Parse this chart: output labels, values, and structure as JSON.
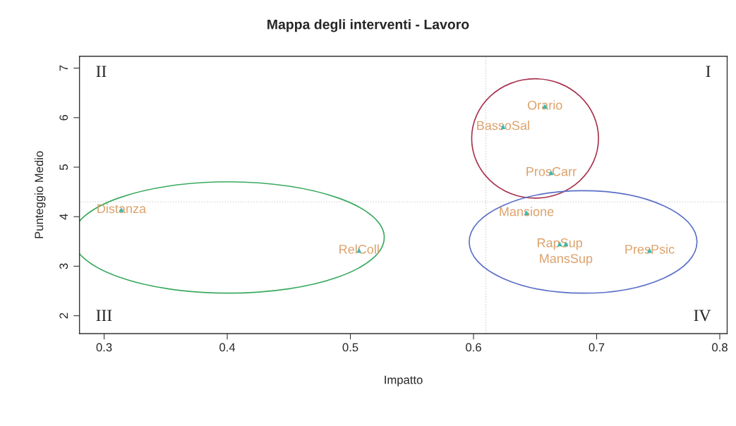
{
  "chart_data": {
    "type": "scatter",
    "title": "Mappa degli interventi - Lavoro",
    "xlabel": "Impatto",
    "ylabel": "Punteggio Medio",
    "xlim": [
      0.28,
      0.806
    ],
    "ylim": [
      1.64,
      7.24
    ],
    "xticks": [
      0.3,
      0.4,
      0.5,
      0.6,
      0.7,
      0.8
    ],
    "yticks": [
      2,
      3,
      4,
      5,
      6,
      7
    ],
    "marker": "triangle",
    "grid": false,
    "legend": false,
    "series": [
      {
        "name": "Orario",
        "color": "#3cb8b0",
        "x": [
          0.658
        ],
        "values": [
          6.23
        ]
      },
      {
        "name": "BassoSal",
        "color": "#3cb8b0",
        "x": [
          0.624
        ],
        "values": [
          5.82
        ]
      },
      {
        "name": "ProsCarr",
        "color": "#3cb8b0",
        "x": [
          0.663
        ],
        "values": [
          4.89
        ]
      },
      {
        "name": "Mansione",
        "color": "#3cb8b0",
        "x": [
          0.643
        ],
        "values": [
          4.08
        ]
      },
      {
        "name": "RapSup",
        "color": "#3cb8b0",
        "x": [
          0.67
        ],
        "values": [
          3.45
        ]
      },
      {
        "name": "MansSup",
        "color": "#3cb8b0",
        "x": [
          0.675
        ],
        "values": [
          3.45
        ]
      },
      {
        "name": "PresPsic",
        "color": "#3cb8b0",
        "x": [
          0.743
        ],
        "values": [
          3.32
        ]
      },
      {
        "name": "Distanza",
        "color": "#3cb8b0",
        "x": [
          0.314
        ],
        "values": [
          4.14
        ]
      },
      {
        "name": "RelColl",
        "color": "#3cb8b0",
        "x": [
          0.507
        ],
        "values": [
          3.32
        ]
      }
    ],
    "ref_lines": [
      {
        "axis": "x",
        "value": 0.61,
        "color": "#d0d0d0",
        "line_style": "dotted"
      },
      {
        "axis": "y",
        "value": 4.3,
        "color": "#d0d0d0",
        "line_style": "dotted"
      }
    ],
    "annotations": [
      "I",
      "II",
      "III",
      "IV"
    ]
  }
}
